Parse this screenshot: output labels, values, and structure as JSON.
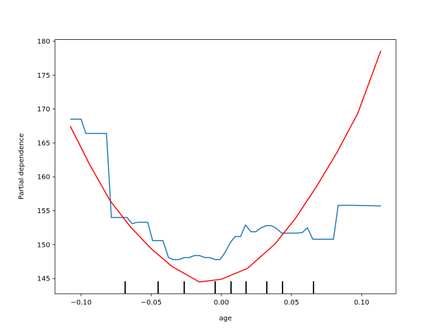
{
  "chart_data": {
    "type": "line",
    "xlabel": "age",
    "ylabel": "Partial dependence",
    "xlim": [
      -0.1186,
      0.1245
    ],
    "ylim": [
      142.77,
      180.24
    ],
    "xticks": [
      {
        "value": -0.1,
        "label": "−0.10"
      },
      {
        "value": -0.05,
        "label": "−0.05"
      },
      {
        "value": 0,
        "label": "0.00"
      },
      0.05,
      {
        "value": 0.1,
        "label": "0.10"
      }
    ],
    "yticks": [
      145,
      150,
      155,
      160,
      165,
      170,
      175,
      180
    ],
    "series": [
      {
        "color": "#1f77b4",
        "x": [
          -0.1078,
          -0.1,
          -0.0966,
          -0.0819,
          -0.0784,
          -0.0672,
          -0.0637,
          -0.0598,
          -0.0525,
          -0.049,
          -0.0417,
          -0.0377,
          -0.0343,
          -0.0304,
          -0.0265,
          -0.023,
          -0.0191,
          -0.0157,
          -0.0118,
          -0.0083,
          -0.0044,
          -0.001,
          0.0025,
          0.0064,
          0.0098,
          0.0137,
          0.0172,
          0.0211,
          0.0245,
          0.0284,
          0.0319,
          0.0358,
          0.0392,
          0.0431,
          0.0466,
          0.0539,
          0.0578,
          0.0613,
          0.0652,
          0.0725,
          0.0799,
          0.0833,
          0.0941,
          0.1137
        ],
        "values": [
          168.5,
          168.5,
          166.4,
          166.4,
          154.0,
          154.0,
          153.1,
          153.3,
          153.3,
          150.6,
          150.6,
          148.1,
          147.8,
          147.8,
          148.1,
          148.1,
          148.4,
          148.4,
          148.1,
          148.1,
          147.8,
          147.8,
          148.8,
          150.3,
          151.2,
          151.2,
          152.9,
          151.9,
          151.9,
          152.5,
          152.8,
          152.8,
          152.4,
          151.7,
          151.7,
          151.7,
          151.8,
          152.5,
          150.8,
          150.8,
          150.8,
          155.8,
          155.8,
          155.7
        ]
      },
      {
        "color": "#ff0000",
        "x": [
          -0.1078,
          -0.0941,
          -0.0794,
          -0.0647,
          -0.05,
          -0.0353,
          -0.0157,
          0,
          0.0186,
          0.0382,
          0.0529,
          0.0676,
          0.0824,
          0.0971,
          0.1137
        ],
        "values": [
          167.5,
          161.9,
          156.5,
          152.6,
          149.4,
          146.8,
          144.5,
          144.9,
          146.5,
          150.1,
          153.9,
          158.5,
          163.6,
          169.3,
          178.6
        ]
      }
    ],
    "deciles": [
      -0.0686,
      -0.0451,
      -0.0265,
      -0.0044,
      0.0069,
      0.0176,
      0.0324,
      0.0436,
      0.0657
    ]
  }
}
